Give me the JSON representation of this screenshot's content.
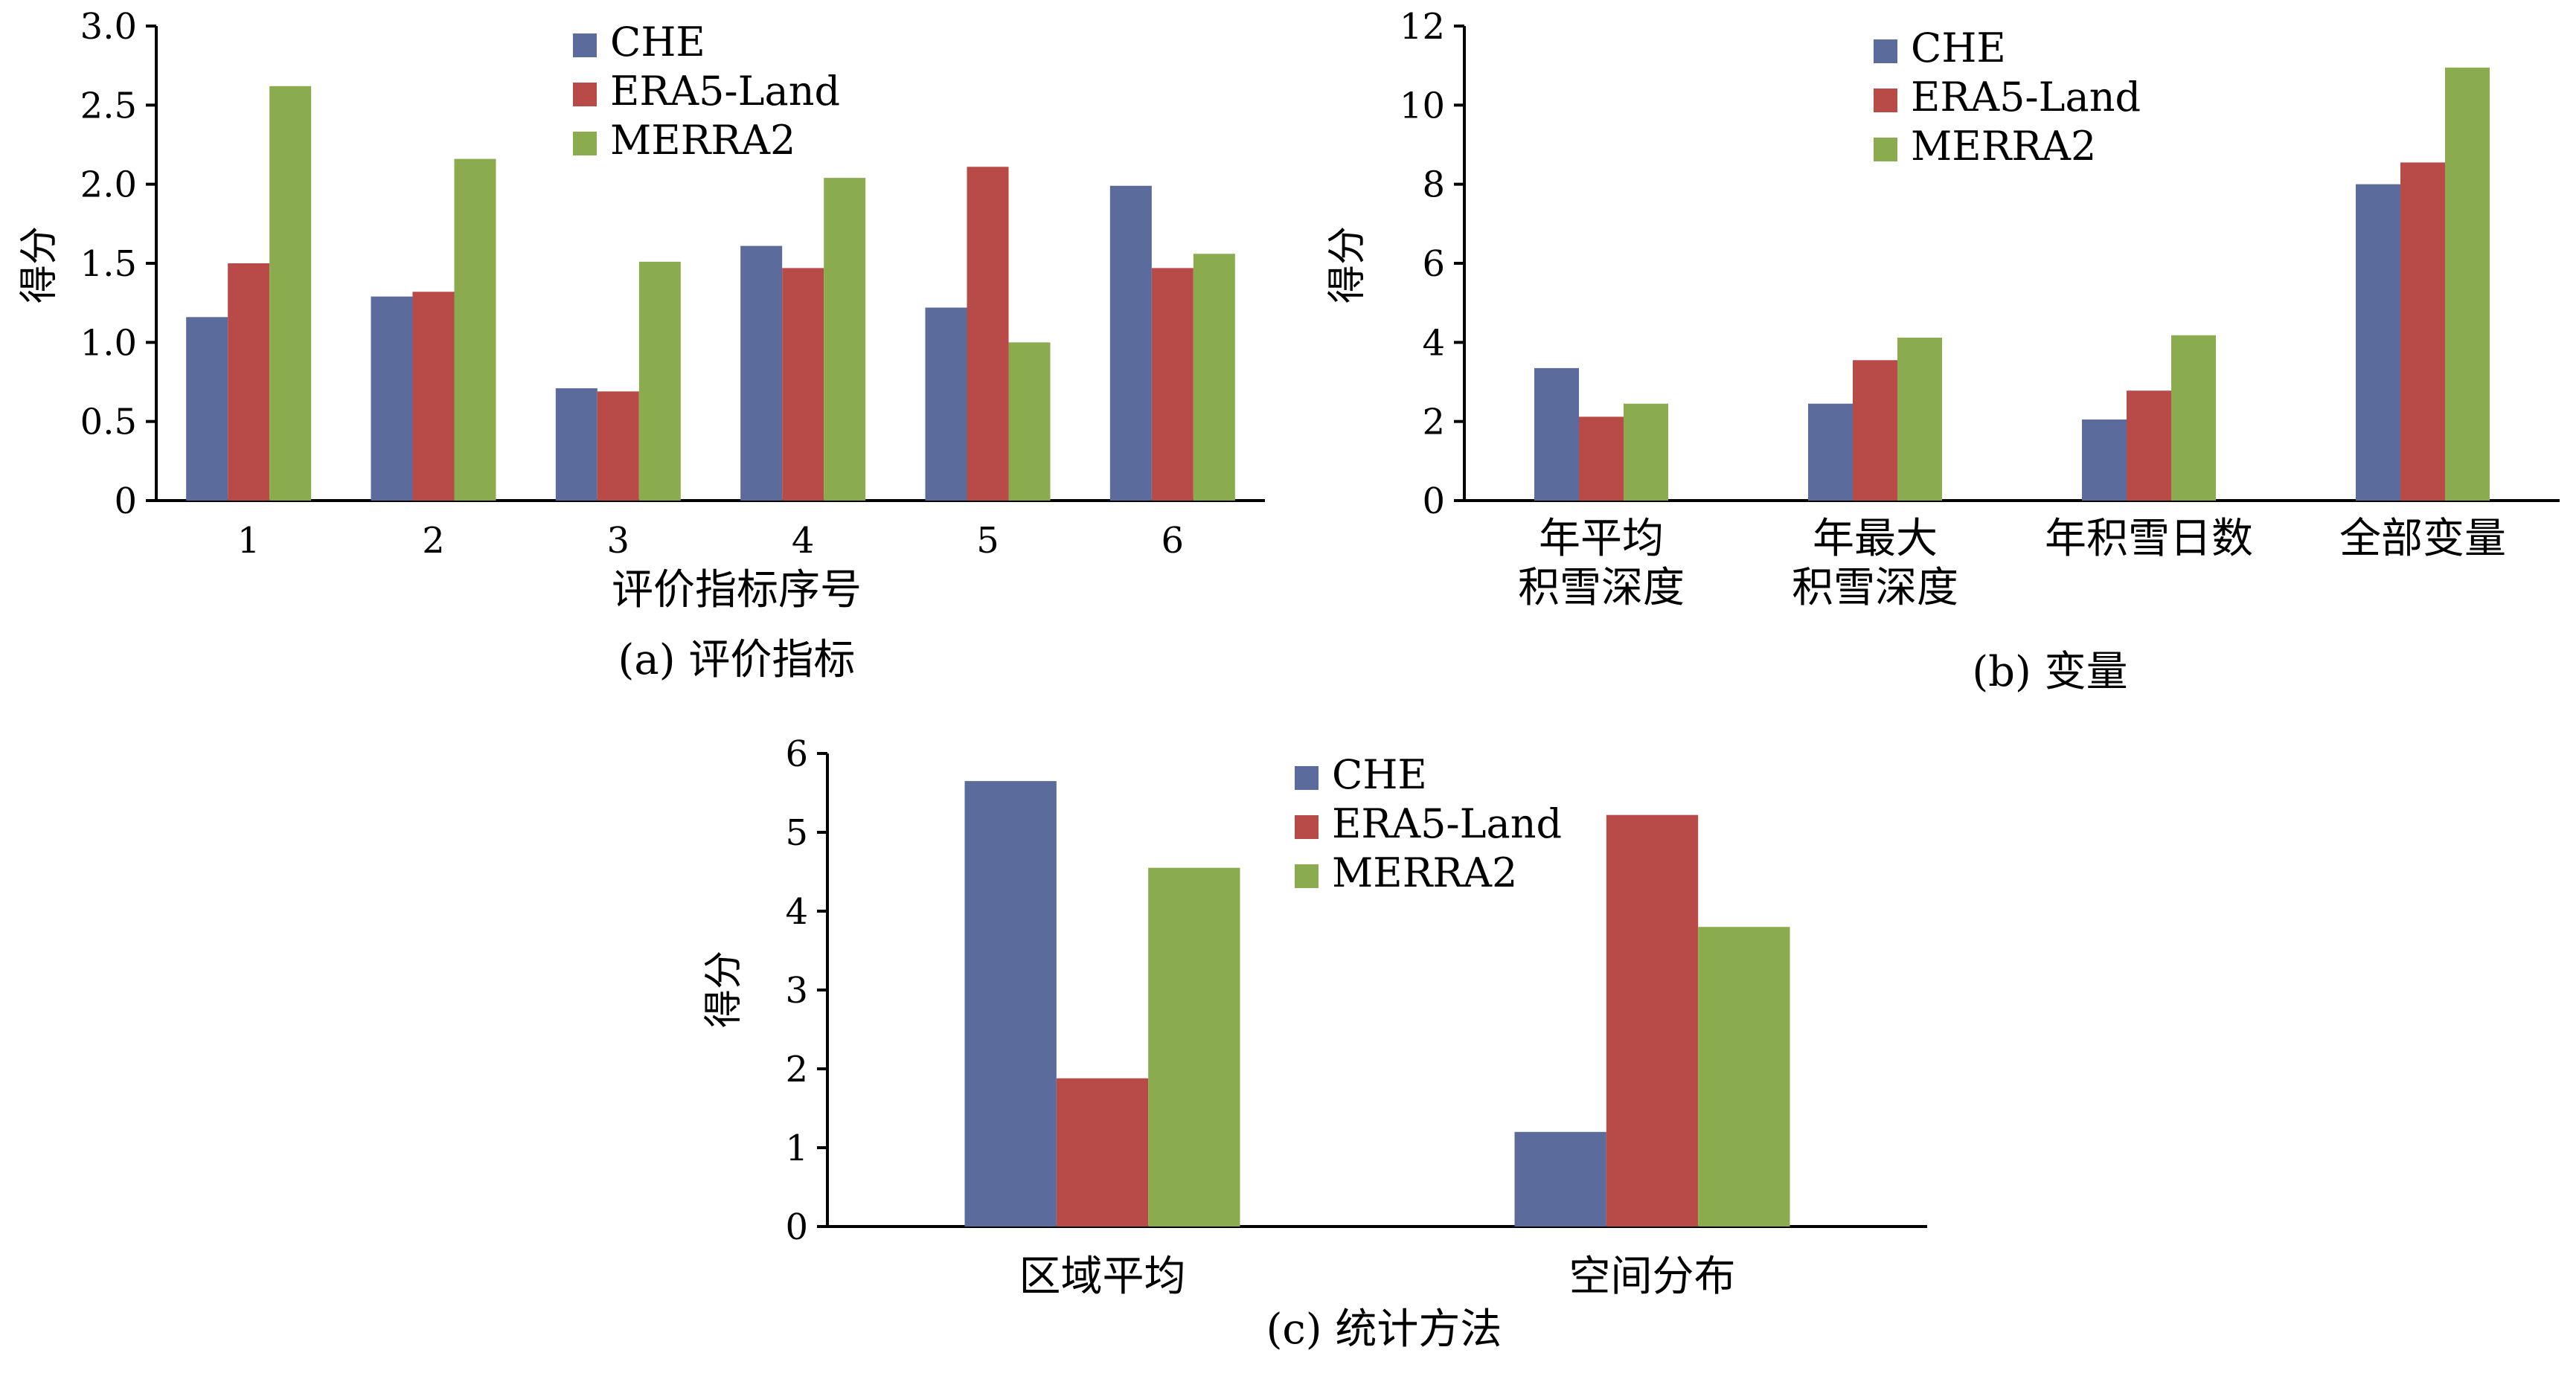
{
  "legend": [
    "CHE",
    "ERA5-Land",
    "MERRA2"
  ],
  "colors": {
    "CHE": "#5a6b9c",
    "ERA5-Land": "#b84a47",
    "MERRA2": "#8aac4f"
  },
  "chart_data": [
    {
      "type": "bar",
      "ylabel": "得分",
      "xlabel": "评价指标序号",
      "caption": "(a) 评价指标",
      "ylim": [
        0,
        3.0
      ],
      "yticks": [
        "0",
        "0.5",
        "1.0",
        "1.5",
        "2.0",
        "2.5",
        "3.0"
      ],
      "categories": [
        "1",
        "2",
        "3",
        "4",
        "5",
        "6"
      ],
      "series": [
        {
          "name": "CHE",
          "values": [
            1.16,
            1.29,
            0.71,
            1.61,
            1.22,
            1.99
          ]
        },
        {
          "name": "ERA5-Land",
          "values": [
            1.5,
            1.32,
            0.69,
            1.47,
            2.11,
            1.47
          ]
        },
        {
          "name": "MERRA2",
          "values": [
            2.62,
            2.16,
            1.51,
            2.04,
            1.0,
            1.56
          ]
        }
      ],
      "legend_position": "top-center"
    },
    {
      "type": "bar",
      "ylabel": "得分",
      "xlabel": "",
      "caption": "(b) 变量",
      "ylim": [
        0,
        12
      ],
      "yticks": [
        "0",
        "2",
        "4",
        "6",
        "8",
        "10",
        "12"
      ],
      "categories": [
        [
          "年平均",
          "积雪深度"
        ],
        [
          "年最大",
          "积雪深度"
        ],
        [
          "年积雪日数"
        ],
        [
          "全部变量"
        ]
      ],
      "series": [
        {
          "name": "CHE",
          "values": [
            3.35,
            2.45,
            2.05,
            8.0
          ]
        },
        {
          "name": "ERA5-Land",
          "values": [
            2.12,
            3.55,
            2.78,
            8.55
          ]
        },
        {
          "name": "MERRA2",
          "values": [
            2.45,
            4.12,
            4.18,
            10.95
          ]
        }
      ],
      "legend_position": "top-left"
    },
    {
      "type": "bar",
      "ylabel": "得分",
      "xlabel": "",
      "caption": "(c) 统计方法",
      "ylim": [
        0,
        6
      ],
      "yticks": [
        "0",
        "1",
        "2",
        "3",
        "4",
        "5",
        "6"
      ],
      "categories": [
        [
          "区域平均"
        ],
        [
          "空间分布"
        ]
      ],
      "series": [
        {
          "name": "CHE",
          "values": [
            5.65,
            1.2
          ]
        },
        {
          "name": "ERA5-Land",
          "values": [
            1.88,
            5.22
          ]
        },
        {
          "name": "MERRA2",
          "values": [
            4.55,
            3.8
          ]
        }
      ],
      "legend_position": "top-center"
    }
  ]
}
